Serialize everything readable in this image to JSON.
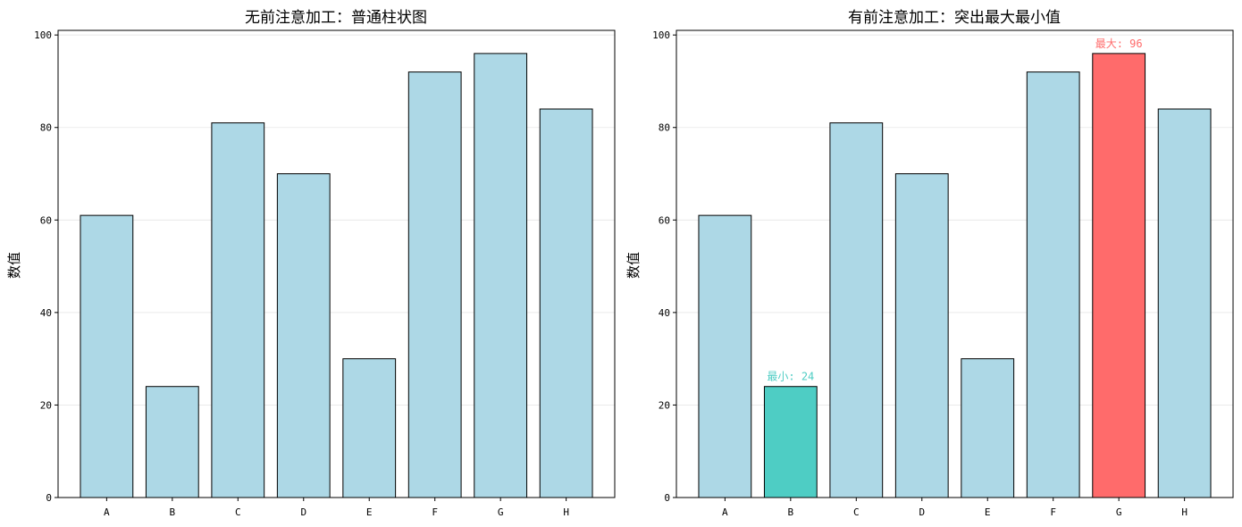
{
  "chart_data": [
    {
      "type": "bar",
      "title": "无前注意加工：普通柱状图",
      "xlabel": "",
      "ylabel": "数值",
      "categories": [
        "A",
        "B",
        "C",
        "D",
        "E",
        "F",
        "G",
        "H"
      ],
      "values": [
        61,
        24,
        81,
        70,
        30,
        92,
        96,
        84
      ],
      "ylim": [
        0,
        101
      ],
      "yticks": [
        "0",
        "20",
        "40",
        "60",
        "80",
        "100"
      ],
      "grid": "y",
      "bar_color": "#add8e6",
      "highlights": [],
      "annotations": []
    },
    {
      "type": "bar",
      "title": "有前注意加工：突出最大最小值",
      "xlabel": "",
      "ylabel": "数值",
      "categories": [
        "A",
        "B",
        "C",
        "D",
        "E",
        "F",
        "G",
        "H"
      ],
      "values": [
        61,
        24,
        81,
        70,
        30,
        92,
        96,
        84
      ],
      "ylim": [
        0,
        101
      ],
      "yticks": [
        "0",
        "20",
        "40",
        "60",
        "80",
        "100"
      ],
      "grid": "y",
      "bar_color": "#add8e6",
      "highlights": [
        {
          "category": "B",
          "color": "#4ecdc4"
        },
        {
          "category": "G",
          "color": "#ff6b6b"
        }
      ],
      "annotations": [
        {
          "category": "B",
          "text": "最小: 24",
          "color": "#4ecdc4"
        },
        {
          "category": "G",
          "text": "最大: 96",
          "color": "#ff6b6b"
        }
      ]
    }
  ]
}
